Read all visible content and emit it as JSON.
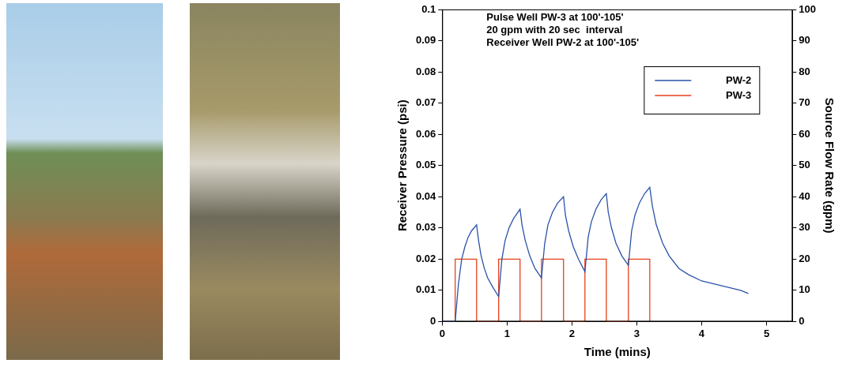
{
  "chart_data": {
    "type": "line",
    "annotations": [
      "Pulse Well PW-3 at 100'-105'",
      "20 gpm with 20 sec  interval",
      "Receiver Well PW-2 at 100'-105'"
    ],
    "x_label": "Time (mins)",
    "y_label": "Receiver Pressure (psi)",
    "y2_label": "Source Flow Rate (gpm)",
    "xlim": [
      0,
      5.4
    ],
    "xticks": [
      0,
      1,
      2,
      3,
      4,
      5
    ],
    "ylim": [
      0,
      0.1
    ],
    "yticks": [
      0,
      0.01,
      0.02,
      0.03,
      0.04,
      0.05,
      0.06,
      0.07,
      0.08,
      0.09,
      0.1
    ],
    "y2lim": [
      0,
      100
    ],
    "y2ticks": [
      0,
      10,
      20,
      30,
      40,
      50,
      60,
      70,
      80,
      90,
      100
    ],
    "grid": false,
    "legend": "upper right",
    "series": [
      {
        "name": "PW-2",
        "color": "#2a52a8",
        "x": [
          0,
          0.2,
          0.25,
          0.3,
          0.35,
          0.4,
          0.45,
          0.53,
          0.56,
          0.6,
          0.65,
          0.7,
          0.78,
          0.87,
          0.92,
          0.97,
          1.03,
          1.1,
          1.2,
          1.23,
          1.28,
          1.35,
          1.43,
          1.53,
          1.58,
          1.63,
          1.7,
          1.78,
          1.87,
          1.9,
          1.95,
          2.02,
          2.1,
          2.2,
          2.25,
          2.3,
          2.37,
          2.45,
          2.53,
          2.56,
          2.61,
          2.68,
          2.77,
          2.87,
          2.92,
          2.97,
          3.04,
          3.12,
          3.2,
          3.24,
          3.3,
          3.4,
          3.5,
          3.65,
          3.8,
          4.0,
          4.2,
          4.4,
          4.6,
          4.72
        ],
        "values": [
          0,
          0,
          0.012,
          0.02,
          0.024,
          0.027,
          0.029,
          0.031,
          0.026,
          0.021,
          0.017,
          0.014,
          0.011,
          0.008,
          0.02,
          0.026,
          0.03,
          0.033,
          0.036,
          0.031,
          0.026,
          0.021,
          0.017,
          0.014,
          0.025,
          0.031,
          0.035,
          0.038,
          0.04,
          0.034,
          0.029,
          0.024,
          0.02,
          0.016,
          0.027,
          0.032,
          0.036,
          0.039,
          0.041,
          0.035,
          0.03,
          0.025,
          0.021,
          0.018,
          0.029,
          0.034,
          0.038,
          0.041,
          0.043,
          0.037,
          0.031,
          0.025,
          0.021,
          0.017,
          0.015,
          0.013,
          0.012,
          0.011,
          0.01,
          0.009
        ]
      },
      {
        "name": "PW-3",
        "color": "#e8401c",
        "axis": "y2",
        "x": [
          0.2,
          0.2,
          0.53,
          0.53,
          0.87,
          0.87,
          1.2,
          1.2,
          1.53,
          1.53,
          1.87,
          1.87,
          2.2,
          2.2,
          2.53,
          2.53,
          2.87,
          2.87,
          3.2,
          3.2
        ],
        "values": [
          0,
          20,
          20,
          0,
          0,
          20,
          20,
          0,
          0,
          20,
          20,
          0,
          0,
          20,
          20,
          0,
          0,
          20,
          20,
          0
        ]
      }
    ]
  }
}
